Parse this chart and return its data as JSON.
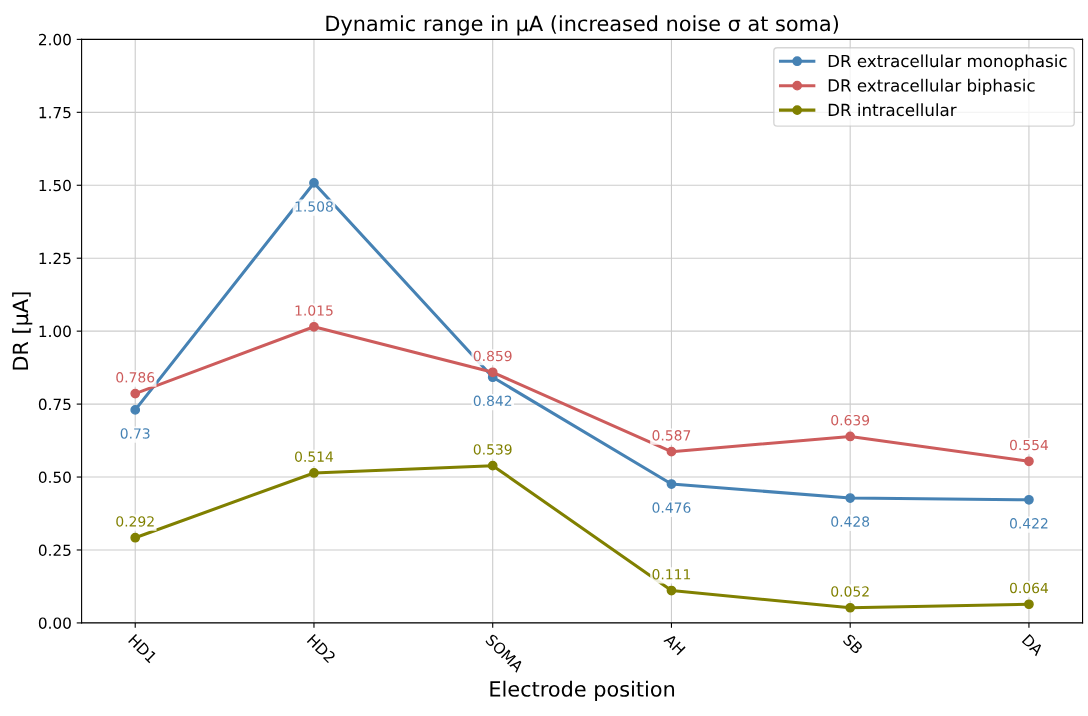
{
  "chart_data": {
    "type": "line",
    "title": "Dynamic range in µA (increased noise σ at soma)",
    "xlabel": "Electrode position",
    "ylabel": "DR [µA]",
    "categories": [
      "HD1",
      "HD2",
      "SOMA",
      "AH",
      "SB",
      "DA"
    ],
    "ylim": [
      0,
      2
    ],
    "yticks": [
      {
        "value": 0,
        "label": "0.00"
      },
      {
        "value": 0.25,
        "label": "0.25"
      },
      {
        "value": 0.5,
        "label": "0.50"
      },
      {
        "value": 0.75,
        "label": "0.75"
      },
      {
        "value": 1,
        "label": "1.00"
      },
      {
        "value": 1.25,
        "label": "1.25"
      },
      {
        "value": 1.5,
        "label": "1.50"
      },
      {
        "value": 1.75,
        "label": "1.75"
      },
      {
        "value": 2,
        "label": "2.00"
      }
    ],
    "series": [
      {
        "name": "DR extracellular monophasic",
        "color": "#4682b4",
        "values": [
          0.73,
          1.508,
          0.842,
          0.476,
          0.428,
          0.422
        ]
      },
      {
        "name": "DR extracellular biphasic",
        "color": "#cd5c5c",
        "values": [
          0.786,
          1.015,
          0.859,
          0.587,
          0.639,
          0.554
        ]
      },
      {
        "name": "DR intracellular",
        "color": "#808000",
        "values": [
          0.292,
          0.514,
          0.539,
          0.111,
          0.052,
          0.064
        ]
      }
    ],
    "data_labels": true,
    "grid": true,
    "legend": "top right",
    "marker": "circle",
    "line_style": "solid"
  }
}
